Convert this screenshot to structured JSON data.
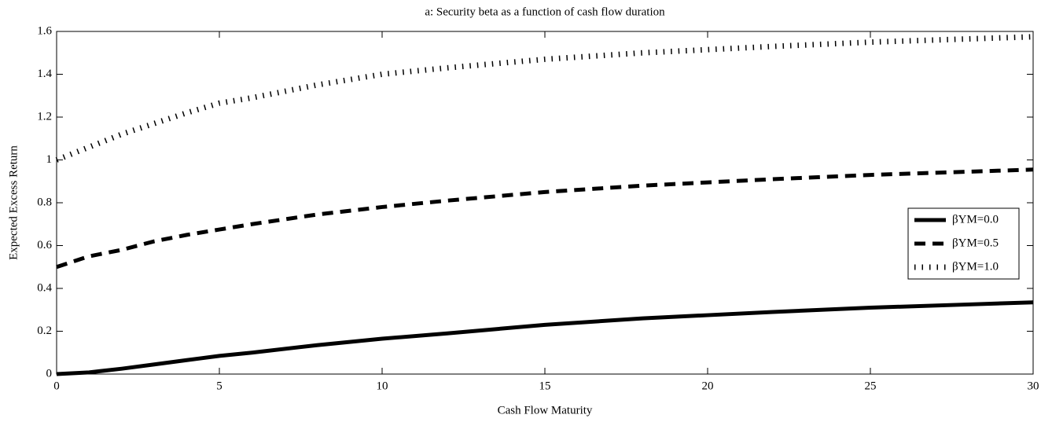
{
  "chart_data": {
    "type": "line",
    "title": "a: Security beta as a function of cash flow duration",
    "x_label": "Cash Flow Maturity",
    "y_label": "Expected Excess Return",
    "x": [
      0,
      1,
      2,
      3,
      4,
      5,
      6,
      8,
      10,
      12,
      15,
      18,
      20,
      22,
      25,
      28,
      30
    ],
    "series": [
      {
        "name": "βYM=0.0",
        "color": "#000000",
        "style": "solid",
        "values": [
          0,
          0.008,
          0.025,
          0.045,
          0.065,
          0.085,
          0.1,
          0.135,
          0.165,
          0.19,
          0.23,
          0.26,
          0.275,
          0.29,
          0.31,
          0.325,
          0.335
        ]
      },
      {
        "name": "βYM=0.5",
        "color": "#000000",
        "style": "dashed",
        "values": [
          0.5,
          0.55,
          0.58,
          0.62,
          0.65,
          0.675,
          0.7,
          0.745,
          0.78,
          0.81,
          0.85,
          0.88,
          0.895,
          0.91,
          0.93,
          0.945,
          0.955
        ]
      },
      {
        "name": "βYM=1.0",
        "color": "#000000",
        "style": "dotted",
        "values": [
          1.0,
          1.06,
          1.12,
          1.17,
          1.22,
          1.265,
          1.29,
          1.35,
          1.4,
          1.43,
          1.47,
          1.5,
          1.515,
          1.53,
          1.55,
          1.565,
          1.575
        ]
      }
    ],
    "xlim": [
      0,
      30
    ],
    "xticks": [
      0,
      5,
      10,
      15,
      20,
      25,
      30
    ],
    "ylim": [
      0,
      1.6
    ],
    "yticks": [
      0,
      0.2,
      0.4,
      0.6,
      0.8,
      1,
      1.2,
      1.4,
      1.6
    ],
    "grid": false,
    "legend": "right"
  }
}
